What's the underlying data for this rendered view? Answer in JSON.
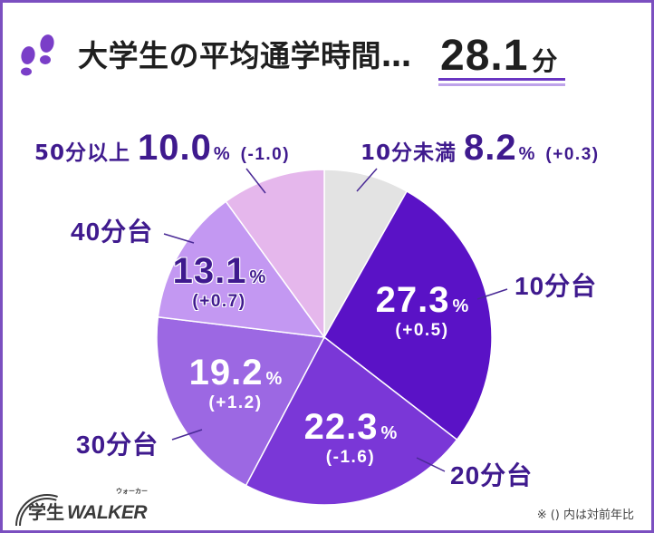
{
  "colors": {
    "frame": "#7b4fc0",
    "title_text": "#1f1f1f",
    "label_text": "#3f1a8e",
    "underline_dark": "#6a36c2",
    "underline_light": "#bea3ea",
    "leader_line": "#4a2a96",
    "icon": "#7a3ec8",
    "logo": "#3a3a3a",
    "note_text": "#444444",
    "inner_label_light": "#ffffff",
    "inner_label_dark": "#3f1a8e"
  },
  "icons": {
    "title": "footprints-icon",
    "logo": "rainbow-arc-icon"
  },
  "chart_data": {
    "type": "pie",
    "title": "大学生の平均通学時間…",
    "average_value": "28.1",
    "average_unit": "分",
    "percent_symbol": "%",
    "slices": [
      {
        "label": "10分未満",
        "value": 8.2,
        "value_text": "8.2",
        "change": "(+0.3)",
        "color": "#e3e3e3"
      },
      {
        "label": "10分台",
        "value": 27.3,
        "value_text": "27.3",
        "change": "(+0.5)",
        "color": "#5a12c6"
      },
      {
        "label": "20分台",
        "value": 22.3,
        "value_text": "22.3",
        "change": "(-1.6)",
        "color": "#7a37d7"
      },
      {
        "label": "30分台",
        "value": 19.2,
        "value_text": "19.2",
        "change": "(+1.2)",
        "color": "#9c68e3"
      },
      {
        "label": "40分台",
        "value": 13.1,
        "value_text": "13.1",
        "change": "(+0.7)",
        "color": "#c398f2"
      },
      {
        "label": "50分以上",
        "value": 10.0,
        "value_text": "10.0",
        "change": "(-1.0)",
        "color": "#e5b7ec"
      }
    ]
  },
  "note": "※ () 内は対前年比",
  "logo": {
    "kanji": "学生",
    "latin": "WALKER",
    "kana": "ウォーカー"
  }
}
